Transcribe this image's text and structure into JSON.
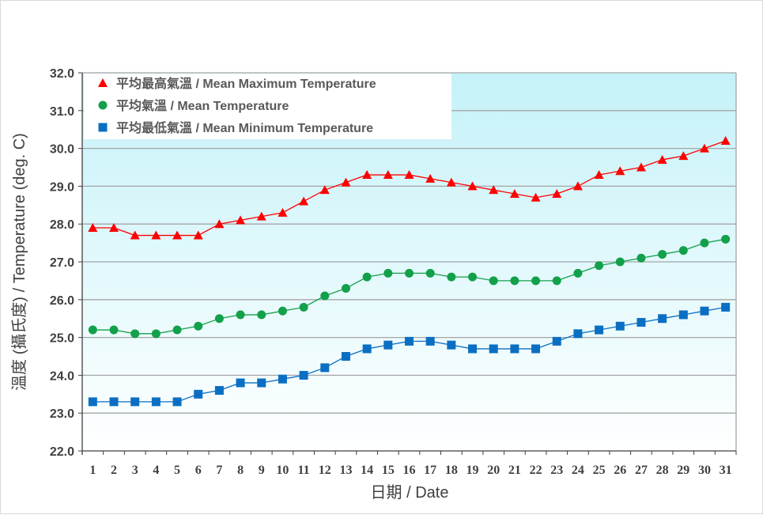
{
  "chart_data": {
    "type": "line",
    "xlabel": "日期 / Date",
    "ylabel": "溫度 (攝氏度) / Temperature (deg. C)",
    "ylim": [
      22.0,
      32.0
    ],
    "yticks": [
      "22.0",
      "23.0",
      "24.0",
      "25.0",
      "26.0",
      "27.0",
      "28.0",
      "29.0",
      "30.0",
      "31.0",
      "32.0"
    ],
    "categories": [
      "1",
      "2",
      "3",
      "4",
      "5",
      "6",
      "7",
      "8",
      "9",
      "10",
      "11",
      "12",
      "13",
      "14",
      "15",
      "16",
      "17",
      "18",
      "19",
      "20",
      "21",
      "22",
      "23",
      "24",
      "25",
      "26",
      "27",
      "28",
      "29",
      "30",
      "31"
    ],
    "grid": true,
    "legend_position": "top-left",
    "series": [
      {
        "name": "平均最高氣溫 / Mean Maximum Temperature",
        "marker": "triangle",
        "color": "#ff0000",
        "values": [
          27.9,
          27.9,
          27.7,
          27.7,
          27.7,
          27.7,
          28.0,
          28.1,
          28.2,
          28.3,
          28.6,
          28.9,
          29.1,
          29.3,
          29.3,
          29.3,
          29.2,
          29.1,
          29.0,
          28.9,
          28.8,
          28.7,
          28.8,
          29.0,
          29.3,
          29.4,
          29.5,
          29.7,
          29.8,
          30.0,
          30.2
        ]
      },
      {
        "name": "平均氣溫 / Mean Temperature",
        "marker": "circle",
        "color": "#12a04a",
        "values": [
          25.2,
          25.2,
          25.1,
          25.1,
          25.2,
          25.3,
          25.5,
          25.6,
          25.6,
          25.7,
          25.8,
          26.1,
          26.3,
          26.6,
          26.7,
          26.7,
          26.7,
          26.6,
          26.6,
          26.5,
          26.5,
          26.5,
          26.5,
          26.7,
          26.9,
          27.0,
          27.1,
          27.2,
          27.3,
          27.5,
          27.6
        ]
      },
      {
        "name": "平均最低氣溫 / Mean Minimum Temperature",
        "marker": "square",
        "color": "#0a6fc2",
        "values": [
          23.3,
          23.3,
          23.3,
          23.3,
          23.3,
          23.5,
          23.6,
          23.8,
          23.8,
          23.9,
          24.0,
          24.2,
          24.5,
          24.7,
          24.8,
          24.9,
          24.9,
          24.8,
          24.7,
          24.7,
          24.7,
          24.7,
          24.9,
          25.1,
          25.2,
          25.3,
          25.4,
          25.5,
          25.6,
          25.7,
          25.8
        ]
      }
    ]
  }
}
